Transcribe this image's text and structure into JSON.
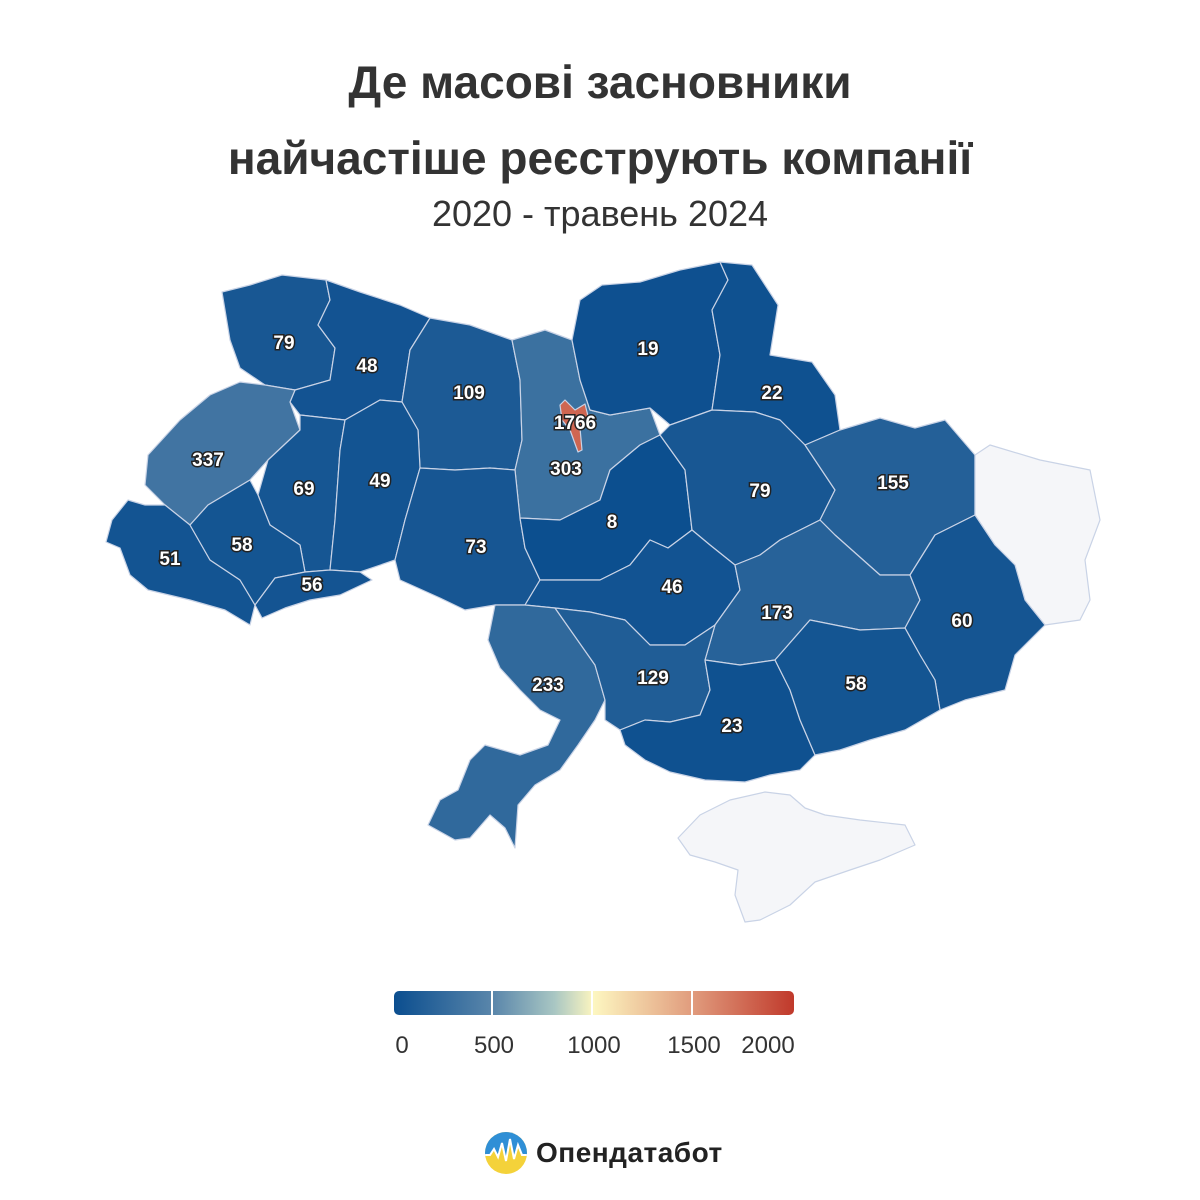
{
  "header": {
    "title_line1": "Де масові засновники",
    "title_line2": "найчастіше реєструють компанії",
    "subtitle": "2020 - травень 2024"
  },
  "map": {
    "colors": {
      "low": "#0b4e8f",
      "mid": "#a8c6c3",
      "high_mid": "#fdf6c0",
      "high": "#c0392b",
      "no_data": "#f5f6f9"
    },
    "regions": [
      {
        "id": "volyn",
        "value": 79,
        "label": "79"
      },
      {
        "id": "rivne",
        "value": 48,
        "label": "48"
      },
      {
        "id": "zhytomyr",
        "value": 109,
        "label": "109"
      },
      {
        "id": "kyiv-city",
        "value": 1766,
        "label": "1766"
      },
      {
        "id": "kyiv-oblast",
        "value": 303,
        "label": "303"
      },
      {
        "id": "chernihiv",
        "value": 19,
        "label": "19"
      },
      {
        "id": "sumy",
        "value": 22,
        "label": "22"
      },
      {
        "id": "lviv",
        "value": 337,
        "label": "337"
      },
      {
        "id": "ternopil",
        "value": 69,
        "label": "69"
      },
      {
        "id": "khmelnytskyi",
        "value": 49,
        "label": "49"
      },
      {
        "id": "zakarpattia",
        "value": 51,
        "label": "51"
      },
      {
        "id": "ivano-frankivsk",
        "value": 58,
        "label": "58"
      },
      {
        "id": "chernivtsi",
        "value": 56,
        "label": "56"
      },
      {
        "id": "vinnytsia",
        "value": 73,
        "label": "73"
      },
      {
        "id": "cherkasy",
        "value": 8,
        "label": "8"
      },
      {
        "id": "poltava",
        "value": 79,
        "label": "79"
      },
      {
        "id": "kharkiv",
        "value": 155,
        "label": "155"
      },
      {
        "id": "kirovohrad",
        "value": 46,
        "label": "46"
      },
      {
        "id": "dnipropetrovsk",
        "value": 173,
        "label": "173"
      },
      {
        "id": "donetsk",
        "value": 60,
        "label": "60"
      },
      {
        "id": "luhansk",
        "value": null,
        "label": ""
      },
      {
        "id": "odesa",
        "value": 233,
        "label": "233"
      },
      {
        "id": "mykolaiv",
        "value": 129,
        "label": "129"
      },
      {
        "id": "kherson",
        "value": 23,
        "label": "23"
      },
      {
        "id": "zaporizhzhia",
        "value": 58,
        "label": "58"
      },
      {
        "id": "crimea",
        "value": null,
        "label": ""
      }
    ]
  },
  "legend": {
    "ticks": [
      "0",
      "500",
      "1000",
      "1500",
      "2000"
    ],
    "min": 0,
    "max": 2000
  },
  "brand": {
    "name": "Опендатабот"
  }
}
